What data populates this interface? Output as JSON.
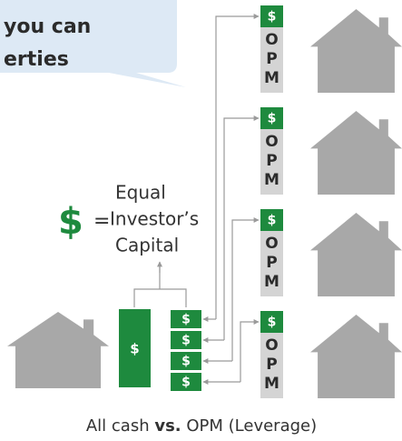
{
  "bubble": {
    "lines": [
      "you can",
      "erties"
    ]
  },
  "equation": {
    "symbol": "$",
    "equals": "=",
    "lines": [
      "Equal",
      "Investor’s",
      "Capital"
    ]
  },
  "all_cash_bar": "$",
  "stack": [
    "$",
    "$",
    "$",
    "$"
  ],
  "opm_columns": [
    {
      "symbol": "$",
      "letters": [
        "O",
        "P",
        "M"
      ]
    },
    {
      "symbol": "$",
      "letters": [
        "O",
        "P",
        "M"
      ]
    },
    {
      "symbol": "$",
      "letters": [
        "O",
        "P",
        "M"
      ]
    },
    {
      "symbol": "$",
      "letters": [
        "O",
        "P",
        "M"
      ]
    }
  ],
  "caption": {
    "left": "All cash",
    "middle": "vs.",
    "right": "OPM (Leverage)"
  }
}
